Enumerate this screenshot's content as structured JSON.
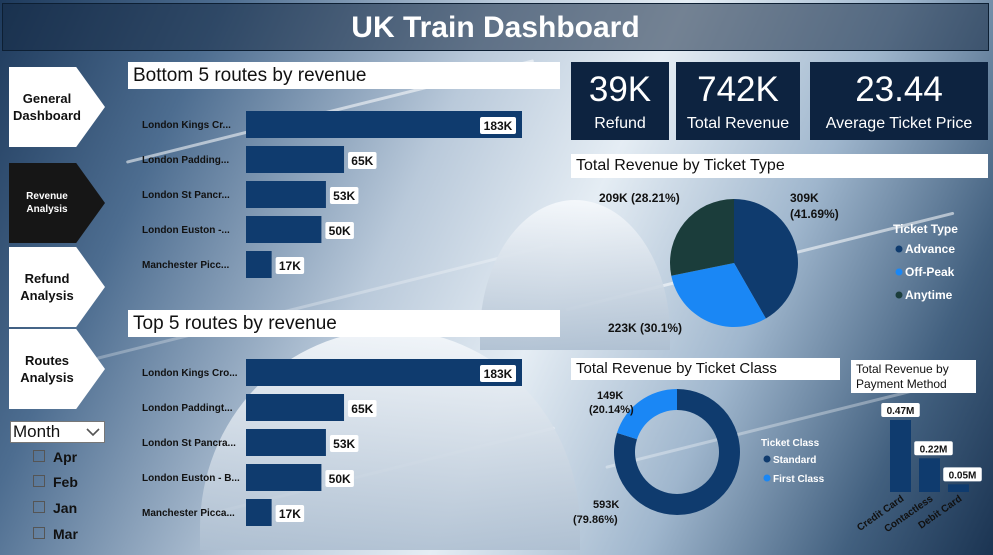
{
  "title": "UK Train Dashboard",
  "nav": [
    {
      "label": "General Dashboard",
      "active": false
    },
    {
      "label": "Revenue Analysis",
      "active": true
    },
    {
      "label": "Refund Analysis",
      "active": false
    },
    {
      "label": "Routes Analysis",
      "active": false
    }
  ],
  "slicer": {
    "label": "Month",
    "options": [
      "Apr",
      "Feb",
      "Jan",
      "Mar"
    ]
  },
  "kpis": [
    {
      "value": "39K",
      "label": "Refund"
    },
    {
      "value": "742K",
      "label": "Total Revenue"
    },
    {
      "value": "23.44",
      "label": "Average Ticket Price"
    }
  ],
  "chart_data": [
    {
      "type": "bar",
      "title": "Bottom 5 routes by revenue",
      "categories": [
        "London Kings Cr...",
        "London Padding...",
        "London St Pancr...",
        "London Euston -...",
        "Manchester Picc..."
      ],
      "values": [
        183,
        65,
        53,
        50,
        17
      ],
      "value_labels": [
        "183K",
        "65K",
        "53K",
        "50K",
        "17K"
      ],
      "orientation": "horizontal",
      "color": "#0f3b6e"
    },
    {
      "type": "bar",
      "title": "Top 5 routes by revenue",
      "categories": [
        "London Kings Cro...",
        "London Paddingt...",
        "London St Pancra...",
        "London Euston - B...",
        "Manchester Picca..."
      ],
      "values": [
        183,
        65,
        53,
        50,
        17
      ],
      "value_labels": [
        "183K",
        "65K",
        "53K",
        "50K",
        "17K"
      ],
      "orientation": "horizontal",
      "color": "#0f3b6e"
    },
    {
      "type": "pie",
      "title": "Total Revenue by Ticket Type",
      "legend_title": "Ticket Type",
      "legend_position": "right",
      "slices": [
        {
          "name": "Advance",
          "value": 309,
          "label": "309K",
          "pct": "(41.69%)",
          "color": "#0f3b6e"
        },
        {
          "name": "Off-Peak",
          "value": 223,
          "label": "223K (30.1%)",
          "color": "#1a87f5"
        },
        {
          "name": "Anytime",
          "value": 209,
          "label": "209K (28.21%)",
          "color": "#1b3d3b"
        }
      ]
    },
    {
      "type": "pie",
      "donut": true,
      "title": "Total Revenue by Ticket Class",
      "legend_title": "Ticket Class",
      "legend_position": "right",
      "slices": [
        {
          "name": "Standard",
          "value": 593,
          "label": "593K",
          "pct": "(79.86%)",
          "color": "#0f3b6e"
        },
        {
          "name": "First Class",
          "value": 149,
          "label": "149K",
          "pct": "(20.14%)",
          "color": "#1a87f5"
        }
      ]
    },
    {
      "type": "bar",
      "title": "Total Revenue by Payment Method",
      "title_lines": [
        "Total Revenue by",
        "Payment Method"
      ],
      "categories": [
        "Credit Card",
        "Contactless",
        "Debit Card"
      ],
      "values": [
        0.47,
        0.22,
        0.05
      ],
      "value_labels": [
        "0.47M",
        "0.22M",
        "0.05M"
      ],
      "orientation": "vertical",
      "color": "#0f3b6e"
    }
  ]
}
